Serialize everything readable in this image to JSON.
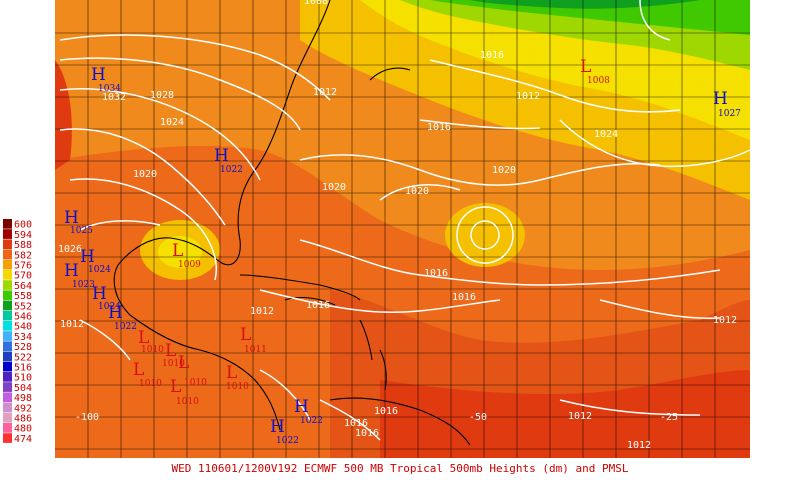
{
  "caption": "WED 110601/1200V192  ECMWF  500 MB Tropical 500mb Heights (dm) and PMSL",
  "legend": [
    {
      "value": "600",
      "color": "#7a0000"
    },
    {
      "value": "594",
      "color": "#a00000"
    },
    {
      "value": "588",
      "color": "#e03a10"
    },
    {
      "value": "582",
      "color": "#f06418"
    },
    {
      "value": "576",
      "color": "#f5a000"
    },
    {
      "value": "570",
      "color": "#f5d800"
    },
    {
      "value": "564",
      "color": "#9ed800"
    },
    {
      "value": "558",
      "color": "#40c800"
    },
    {
      "value": "552",
      "color": "#10a020"
    },
    {
      "value": "546",
      "color": "#00c8a0"
    },
    {
      "value": "540",
      "color": "#00e0e0"
    },
    {
      "value": "534",
      "color": "#40b0ff"
    },
    {
      "value": "528",
      "color": "#3070e0"
    },
    {
      "value": "522",
      "color": "#2040c0"
    },
    {
      "value": "516",
      "color": "#0000c8"
    },
    {
      "value": "510",
      "color": "#5020c0"
    },
    {
      "value": "504",
      "color": "#8040c8"
    },
    {
      "value": "498",
      "color": "#c060e0"
    },
    {
      "value": "492",
      "color": "#d090d0"
    },
    {
      "value": "486",
      "color": "#e0a0c0"
    },
    {
      "value": "480",
      "color": "#ff60a0"
    },
    {
      "value": "474",
      "color": "#ff3030"
    }
  ],
  "lon_labels": [
    "-100",
    "-50",
    "-25"
  ],
  "pressure_centers": [
    {
      "type": "H",
      "value": "1034"
    },
    {
      "type": "H",
      "value": "1022"
    },
    {
      "type": "H",
      "value": "1027"
    },
    {
      "type": "H",
      "value": "1025"
    },
    {
      "type": "H",
      "value": "1024"
    },
    {
      "type": "H",
      "value": "1023"
    },
    {
      "type": "H",
      "value": "1024"
    },
    {
      "type": "H",
      "value": "1022"
    },
    {
      "type": "H",
      "value": "1022"
    },
    {
      "type": "H",
      "value": "1022"
    },
    {
      "type": "L",
      "value": "1008"
    },
    {
      "type": "L",
      "value": "1009"
    },
    {
      "type": "L",
      "value": "1011"
    },
    {
      "type": "L",
      "value": "1010"
    },
    {
      "type": "L",
      "value": "1010"
    },
    {
      "type": "L",
      "value": "1010"
    },
    {
      "type": "L",
      "value": "1010"
    },
    {
      "type": "L",
      "value": "1010"
    },
    {
      "type": "L",
      "value": "1010"
    }
  ],
  "isobar_labels": [
    "1032",
    "1028",
    "1024",
    "1020",
    "1020",
    "1020",
    "1020",
    "1016",
    "1016",
    "1016",
    "1016",
    "1016",
    "1012",
    "1012",
    "1012",
    "1012",
    "1012",
    "1012",
    "1012",
    "1016",
    "1016",
    "1016",
    "1024",
    "1008",
    "1026"
  ],
  "colors": {
    "high": "#1010c8",
    "low": "#d81010",
    "isobar": "#ffffff",
    "caption": "#cc0000"
  }
}
